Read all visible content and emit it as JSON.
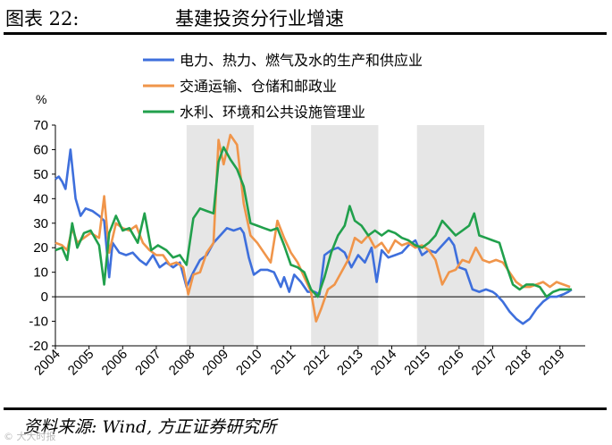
{
  "figure": {
    "number": "图表 22:",
    "title": "基建投资分行业增速",
    "source": "资料来源: Wind, 方正证券研究所",
    "watermark": "© 大大时报"
  },
  "chart_data": {
    "type": "line",
    "ylabel": "%",
    "ylim": [
      -20,
      70
    ],
    "yticks": [
      -20,
      -10,
      0,
      10,
      20,
      30,
      40,
      50,
      60,
      70
    ],
    "xlim": [
      2004.0,
      2019.75
    ],
    "xticks": [
      2004,
      2005,
      2006,
      2007,
      2008,
      2009,
      2010,
      2011,
      2012,
      2013,
      2014,
      2015,
      2016,
      2017,
      2018,
      2019
    ],
    "legend_position": "top-right",
    "grid": false,
    "shaded_periods": [
      [
        2007.9,
        2009.9
      ],
      [
        2011.6,
        2013.6
      ],
      [
        2014.75,
        2016.75
      ]
    ],
    "series": [
      {
        "name": "电力、热力、燃气及水的生产和供应业",
        "color": "#3e6fdc",
        "points": [
          [
            2004.0,
            48
          ],
          [
            2004.1,
            49
          ],
          [
            2004.2,
            47
          ],
          [
            2004.3,
            44
          ],
          [
            2004.45,
            60
          ],
          [
            2004.6,
            40
          ],
          [
            2004.75,
            33
          ],
          [
            2004.9,
            36
          ],
          [
            2005.1,
            35
          ],
          [
            2005.3,
            33
          ],
          [
            2005.45,
            31
          ],
          [
            2005.6,
            8
          ],
          [
            2005.7,
            22
          ],
          [
            2005.9,
            18
          ],
          [
            2006.1,
            17
          ],
          [
            2006.3,
            18
          ],
          [
            2006.5,
            15
          ],
          [
            2006.7,
            13
          ],
          [
            2006.9,
            17
          ],
          [
            2007.1,
            12
          ],
          [
            2007.3,
            14
          ],
          [
            2007.5,
            12
          ],
          [
            2007.7,
            14
          ],
          [
            2007.8,
            9
          ],
          [
            2007.9,
            4
          ],
          [
            2008.1,
            10
          ],
          [
            2008.3,
            15
          ],
          [
            2008.5,
            17
          ],
          [
            2008.7,
            22
          ],
          [
            2008.9,
            25
          ],
          [
            2009.1,
            28
          ],
          [
            2009.3,
            27
          ],
          [
            2009.5,
            28
          ],
          [
            2009.6,
            26
          ],
          [
            2009.75,
            16
          ],
          [
            2009.9,
            9
          ],
          [
            2010.1,
            11
          ],
          [
            2010.3,
            11
          ],
          [
            2010.5,
            10
          ],
          [
            2010.7,
            4
          ],
          [
            2010.8,
            8
          ],
          [
            2010.95,
            2
          ],
          [
            2011.1,
            9
          ],
          [
            2011.3,
            6
          ],
          [
            2011.5,
            2
          ],
          [
            2011.7,
            2
          ],
          [
            2011.85,
            1
          ],
          [
            2012.0,
            17
          ],
          [
            2012.2,
            19
          ],
          [
            2012.4,
            20
          ],
          [
            2012.6,
            18
          ],
          [
            2012.8,
            12
          ],
          [
            2013.0,
            17
          ],
          [
            2013.2,
            14
          ],
          [
            2013.4,
            20
          ],
          [
            2013.55,
            6
          ],
          [
            2013.7,
            19
          ],
          [
            2013.9,
            16
          ],
          [
            2014.1,
            17
          ],
          [
            2014.3,
            18
          ],
          [
            2014.5,
            21
          ],
          [
            2014.7,
            23
          ],
          [
            2014.9,
            17
          ],
          [
            2015.1,
            19
          ],
          [
            2015.3,
            18
          ],
          [
            2015.5,
            21
          ],
          [
            2015.7,
            24
          ],
          [
            2015.85,
            21
          ],
          [
            2016.0,
            12
          ],
          [
            2016.2,
            11
          ],
          [
            2016.4,
            3
          ],
          [
            2016.6,
            2
          ],
          [
            2016.8,
            3
          ],
          [
            2017.0,
            2
          ],
          [
            2017.1,
            1
          ],
          [
            2017.3,
            -2
          ],
          [
            2017.5,
            -6
          ],
          [
            2017.7,
            -9
          ],
          [
            2017.9,
            -11
          ],
          [
            2018.1,
            -9
          ],
          [
            2018.3,
            -5
          ],
          [
            2018.5,
            -2
          ],
          [
            2018.7,
            0
          ],
          [
            2018.9,
            0
          ],
          [
            2019.1,
            1
          ],
          [
            2019.25,
            2
          ],
          [
            2019.35,
            3
          ]
        ]
      },
      {
        "name": "交通运输、仓储和邮政业",
        "color": "#f0954a",
        "points": [
          [
            2004.0,
            22
          ],
          [
            2004.2,
            21
          ],
          [
            2004.35,
            19
          ],
          [
            2004.5,
            28
          ],
          [
            2004.65,
            22
          ],
          [
            2004.85,
            24
          ],
          [
            2005.05,
            26
          ],
          [
            2005.3,
            24
          ],
          [
            2005.45,
            41
          ],
          [
            2005.6,
            18
          ],
          [
            2005.8,
            30
          ],
          [
            2006.0,
            28
          ],
          [
            2006.2,
            27
          ],
          [
            2006.4,
            29
          ],
          [
            2006.6,
            22
          ],
          [
            2006.8,
            19
          ],
          [
            2007.0,
            17
          ],
          [
            2007.2,
            17
          ],
          [
            2007.4,
            13
          ],
          [
            2007.6,
            14
          ],
          [
            2007.8,
            12
          ],
          [
            2007.95,
            1
          ],
          [
            2008.1,
            9
          ],
          [
            2008.3,
            10
          ],
          [
            2008.5,
            18
          ],
          [
            2008.7,
            22
          ],
          [
            2008.85,
            64
          ],
          [
            2009.0,
            54
          ],
          [
            2009.2,
            66
          ],
          [
            2009.4,
            62
          ],
          [
            2009.6,
            38
          ],
          [
            2009.8,
            25
          ],
          [
            2010.0,
            22
          ],
          [
            2010.2,
            18
          ],
          [
            2010.4,
            14
          ],
          [
            2010.6,
            31
          ],
          [
            2010.8,
            24
          ],
          [
            2011.0,
            18
          ],
          [
            2011.2,
            14
          ],
          [
            2011.4,
            8
          ],
          [
            2011.6,
            2
          ],
          [
            2011.75,
            -10
          ],
          [
            2011.9,
            -5
          ],
          [
            2012.1,
            3
          ],
          [
            2012.3,
            5
          ],
          [
            2012.5,
            10
          ],
          [
            2012.7,
            15
          ],
          [
            2012.9,
            24
          ],
          [
            2013.1,
            22
          ],
          [
            2013.3,
            25
          ],
          [
            2013.5,
            20
          ],
          [
            2013.7,
            22
          ],
          [
            2013.9,
            18
          ],
          [
            2014.1,
            23
          ],
          [
            2014.3,
            21
          ],
          [
            2014.5,
            22
          ],
          [
            2014.7,
            20
          ],
          [
            2014.9,
            21
          ],
          [
            2015.1,
            19
          ],
          [
            2015.3,
            15
          ],
          [
            2015.5,
            5
          ],
          [
            2015.7,
            10
          ],
          [
            2015.9,
            11
          ],
          [
            2016.1,
            15
          ],
          [
            2016.3,
            14
          ],
          [
            2016.5,
            20
          ],
          [
            2016.7,
            15
          ],
          [
            2016.9,
            14
          ],
          [
            2017.1,
            15
          ],
          [
            2017.3,
            14
          ],
          [
            2017.5,
            10
          ],
          [
            2017.7,
            6
          ],
          [
            2017.9,
            4
          ],
          [
            2018.1,
            4
          ],
          [
            2018.3,
            5
          ],
          [
            2018.5,
            6
          ],
          [
            2018.7,
            4
          ],
          [
            2018.9,
            6
          ],
          [
            2019.1,
            5
          ],
          [
            2019.3,
            4
          ]
        ]
      },
      {
        "name": "水利、环境和公共设施管理业",
        "color": "#21a04c",
        "points": [
          [
            2004.0,
            19
          ],
          [
            2004.2,
            20
          ],
          [
            2004.35,
            15
          ],
          [
            2004.5,
            30
          ],
          [
            2004.65,
            20
          ],
          [
            2004.85,
            26
          ],
          [
            2005.05,
            27
          ],
          [
            2005.3,
            21
          ],
          [
            2005.45,
            5
          ],
          [
            2005.6,
            26
          ],
          [
            2005.8,
            33
          ],
          [
            2006.0,
            27
          ],
          [
            2006.2,
            28
          ],
          [
            2006.45,
            22
          ],
          [
            2006.65,
            34
          ],
          [
            2006.85,
            19
          ],
          [
            2007.05,
            21
          ],
          [
            2007.3,
            19
          ],
          [
            2007.5,
            16
          ],
          [
            2007.7,
            17
          ],
          [
            2007.9,
            13
          ],
          [
            2008.1,
            32
          ],
          [
            2008.3,
            36
          ],
          [
            2008.5,
            35
          ],
          [
            2008.7,
            34
          ],
          [
            2008.85,
            55
          ],
          [
            2009.0,
            61
          ],
          [
            2009.2,
            56
          ],
          [
            2009.4,
            52
          ],
          [
            2009.6,
            45
          ],
          [
            2009.8,
            30
          ],
          [
            2010.0,
            29
          ],
          [
            2010.2,
            28
          ],
          [
            2010.4,
            27
          ],
          [
            2010.6,
            28
          ],
          [
            2010.8,
            21
          ],
          [
            2011.0,
            13
          ],
          [
            2011.2,
            12
          ],
          [
            2011.4,
            10
          ],
          [
            2011.6,
            3
          ],
          [
            2011.8,
            0
          ],
          [
            2012.0,
            8
          ],
          [
            2012.2,
            18
          ],
          [
            2012.4,
            25
          ],
          [
            2012.6,
            29
          ],
          [
            2012.75,
            37
          ],
          [
            2012.9,
            31
          ],
          [
            2013.1,
            29
          ],
          [
            2013.3,
            25
          ],
          [
            2013.5,
            27
          ],
          [
            2013.7,
            25
          ],
          [
            2013.9,
            27
          ],
          [
            2014.1,
            26
          ],
          [
            2014.3,
            24
          ],
          [
            2014.5,
            23
          ],
          [
            2014.7,
            21
          ],
          [
            2014.9,
            20
          ],
          [
            2015.1,
            22
          ],
          [
            2015.3,
            25
          ],
          [
            2015.5,
            31
          ],
          [
            2015.7,
            28
          ],
          [
            2015.9,
            25
          ],
          [
            2016.1,
            27
          ],
          [
            2016.3,
            29
          ],
          [
            2016.45,
            34
          ],
          [
            2016.6,
            25
          ],
          [
            2016.8,
            24
          ],
          [
            2017.0,
            23
          ],
          [
            2017.2,
            22
          ],
          [
            2017.4,
            13
          ],
          [
            2017.6,
            5
          ],
          [
            2017.8,
            3
          ],
          [
            2018.0,
            5
          ],
          [
            2018.2,
            5
          ],
          [
            2018.4,
            4
          ],
          [
            2018.6,
            0
          ],
          [
            2018.8,
            2
          ],
          [
            2019.0,
            3
          ],
          [
            2019.2,
            3
          ],
          [
            2019.35,
            3
          ]
        ]
      }
    ]
  }
}
